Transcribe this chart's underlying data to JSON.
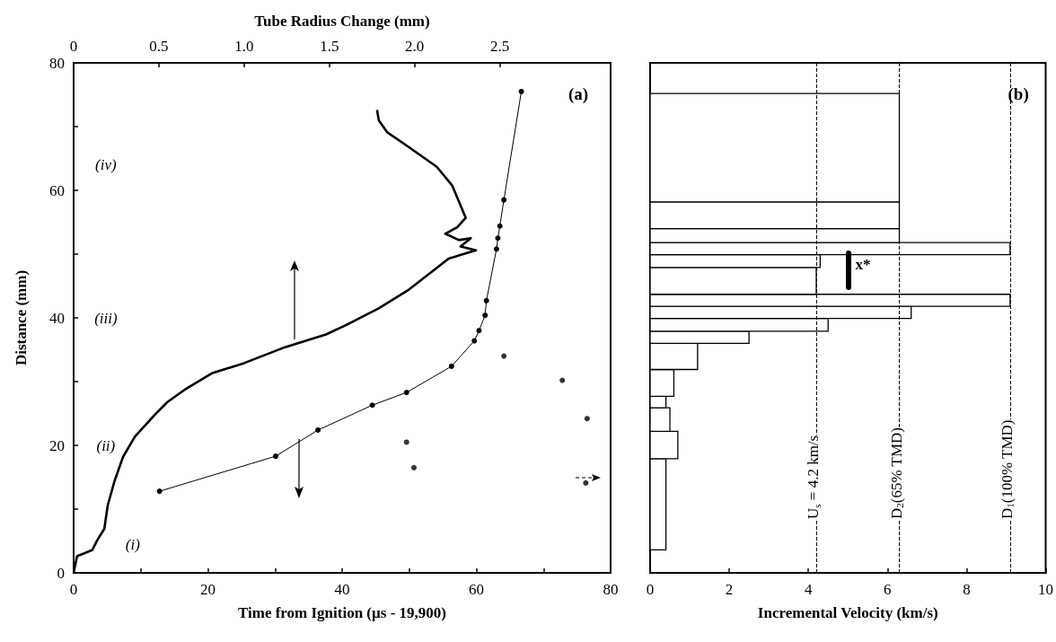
{
  "chart_data": [
    {
      "type": "line",
      "xlabel": "Time from Ignition (µs - 19,900)",
      "x2label": "Tube Radius Change (mm)",
      "ylabel": "Distance (mm)",
      "xlim": [
        0,
        80
      ],
      "xticks": [
        0,
        {
          "value": 10,
          "label": null
        },
        20,
        {
          "value": 30,
          "label": null
        },
        40,
        {
          "value": 50,
          "label": null
        },
        60,
        {
          "value": 70,
          "label": null
        },
        80
      ],
      "x2lim": [
        0,
        3.15
      ],
      "x2ticks": [
        0,
        0.5,
        {
          "value": 1,
          "label": "1.0"
        },
        1.5,
        {
          "value": 2,
          "label": "2.0"
        },
        2.5
      ],
      "ylim": [
        0,
        80
      ],
      "yticks": [
        0,
        {
          "value": 10,
          "label": null
        },
        20,
        {
          "value": 30,
          "label": null
        },
        40,
        {
          "value": 50,
          "label": null
        },
        60,
        {
          "value": 70,
          "label": null
        },
        80
      ],
      "grid": false,
      "annotations": [
        "(a)",
        "(iv)",
        "(iii)",
        "(ii)",
        "(i)"
      ],
      "series": [
        {
          "type": "line",
          "axis": "x2",
          "color": "#000000",
          "marker": "none",
          "x": [
            0,
            0.02,
            0.11,
            0.14,
            0.18,
            0.2,
            0.24,
            0.29,
            0.36,
            0.48,
            0.55,
            0.65,
            0.81,
            1.0,
            1.24,
            1.48,
            1.6,
            1.79,
            1.96,
            2.08,
            2.2,
            2.36,
            2.27,
            2.33,
            2.26,
            2.18,
            2.25,
            2.3,
            2.22,
            2.13,
            1.96,
            1.84,
            1.79,
            1.78
          ],
          "values": [
            0,
            2.6,
            3.6,
            5.2,
            6.9,
            10.6,
            14.4,
            18.2,
            21.4,
            24.9,
            26.8,
            28.7,
            31.3,
            32.9,
            35.4,
            37.4,
            38.9,
            41.5,
            44.3,
            46.8,
            49.3,
            50.6,
            51.2,
            52.5,
            52.2,
            53.2,
            54.2,
            55.7,
            60.8,
            63.7,
            66.9,
            69.1,
            71.0,
            72.6
          ]
        },
        {
          "type": "line",
          "color": "#000000",
          "marker": "circle",
          "x": [
            12.8,
            30.1,
            36.4,
            44.5,
            49.6,
            56.3,
            59.7,
            60.4,
            61.3,
            61.5,
            63.0,
            63.2,
            63.5,
            64.1,
            66.7
          ],
          "values": [
            12.8,
            18.3,
            22.4,
            26.3,
            28.3,
            32.4,
            36.4,
            38.0,
            40.4,
            42.7,
            50.8,
            52.5,
            54.4,
            58.5,
            75.5
          ]
        },
        {
          "type": "scatter",
          "color": "#000000",
          "marker": "circle",
          "x": [
            49.6,
            50.7,
            64.1,
            72.8,
            76.5,
            76.3
          ],
          "values": [
            20.5,
            16.5,
            34.0,
            30.2,
            24.2,
            14.1
          ]
        }
      ]
    },
    {
      "type": "histogram",
      "orientation": "horizontal",
      "xlabel": "Incremental Velocity (km/s)",
      "xlim": [
        0,
        10
      ],
      "xticks": [
        0,
        2,
        4,
        6,
        8,
        10
      ],
      "ylim": [
        0,
        80
      ],
      "yticks": [
        {
          "value": 0,
          "label": null
        },
        {
          "value": 10,
          "label": null
        },
        {
          "value": 20,
          "label": null
        },
        {
          "value": 30,
          "label": null
        },
        {
          "value": 40,
          "label": null
        },
        {
          "value": 50,
          "label": null
        },
        {
          "value": 60,
          "label": null
        },
        {
          "value": 70,
          "label": null
        },
        {
          "value": 80,
          "label": null
        }
      ],
      "tick_labels": "x",
      "grid": false,
      "color": "#000000",
      "bins": [
        3.6,
        17.9,
        22.2,
        25.9,
        27.7,
        31.9,
        36.0,
        37.9,
        39.9,
        41.8,
        43.7,
        47.9,
        49.9,
        51.8,
        54.0,
        58.2,
        75.2
      ],
      "values": [
        0.4,
        0.7,
        0.5,
        0.4,
        0.6,
        1.2,
        2.5,
        4.5,
        6.6,
        9.1,
        4.2,
        4.3,
        9.1,
        6.3,
        6.3,
        6.3
      ],
      "ref_lines": [
        {
          "axis": "x",
          "value": 4.2,
          "label": "U$_{s}$ = 4.2 km/s",
          "line_style": "dashed"
        },
        {
          "axis": "x",
          "value": 6.3,
          "label": "D$_{2}$(65% TMD)",
          "line_style": "dashed"
        },
        {
          "axis": "x",
          "value": 9.1,
          "label": "D$_{1}$(100% TMD)",
          "line_style": "dashed"
        }
      ],
      "annotations": [
        "(b)",
        "x*"
      ]
    }
  ]
}
